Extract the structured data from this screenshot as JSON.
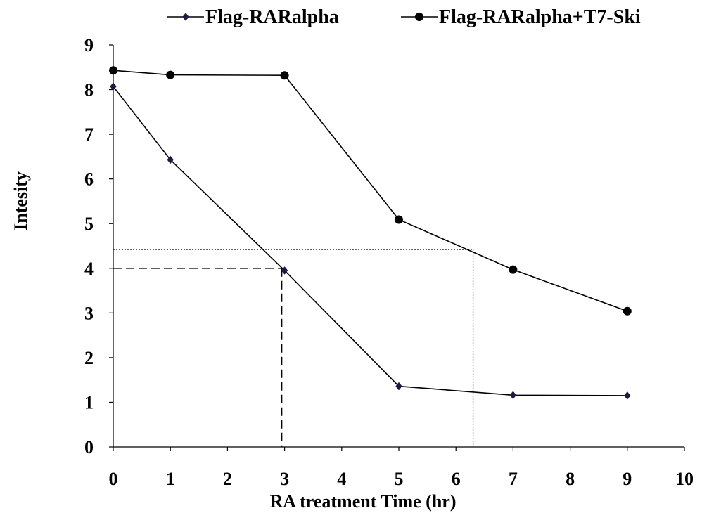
{
  "chart_data": {
    "type": "line",
    "xlabel": "RA treatment Time (hr)",
    "ylabel": "Intesity",
    "xlim": [
      0,
      10
    ],
    "ylim": [
      0,
      9
    ],
    "xticks": [
      0,
      1,
      2,
      3,
      4,
      5,
      6,
      7,
      8,
      9,
      10
    ],
    "yticks": [
      0,
      1,
      2,
      3,
      4,
      5,
      6,
      7,
      8,
      9
    ],
    "grid": false,
    "legend_position": "top",
    "series": [
      {
        "name": "Flag-RARalpha",
        "marker": "diamond",
        "color": "#1a1a4a",
        "x": [
          0,
          1,
          3,
          5,
          7,
          9
        ],
        "y": [
          8.07,
          6.43,
          3.95,
          1.36,
          1.16,
          1.15
        ]
      },
      {
        "name": "Flag-RARalpha+T7-Ski",
        "marker": "circle",
        "color": "#000000",
        "x": [
          0,
          1,
          3,
          5,
          7,
          9
        ],
        "y": [
          8.43,
          8.33,
          8.32,
          5.09,
          3.97,
          3.04
        ]
      }
    ],
    "reference_lines": [
      {
        "style": "dashed",
        "x": 2.95,
        "y": 4.0
      },
      {
        "style": "dotted",
        "x": 6.3,
        "y": 4.42
      }
    ]
  }
}
